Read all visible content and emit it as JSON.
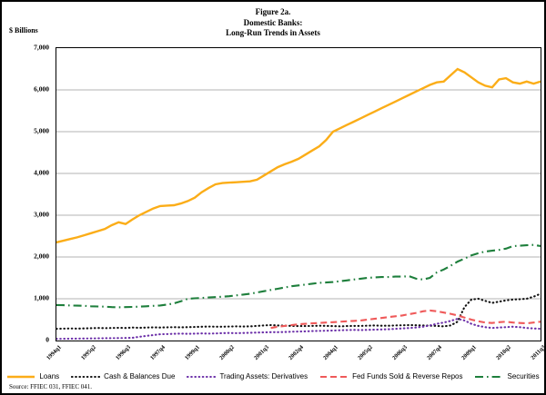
{
  "figure": {
    "title_lines": [
      "Figure 2a.",
      "Domestic Banks:",
      "Long-Run Trends in Assets"
    ],
    "y_axis_unit_label": "$ Billions",
    "source": "Source: FFIEC 031, FFIEC 041."
  },
  "chart_data": {
    "type": "line",
    "title": "Figure 2a. Domestic Banks: Long-Run Trends in Assets",
    "ylabel": "$ Billions",
    "ylim": [
      0,
      7000
    ],
    "grid": "horizontal-gray",
    "legend_position": "bottom",
    "n_points": 71,
    "x_start": "1994q1",
    "x_end": "2011q3",
    "x_frequency": "quarterly",
    "x_ticks": [
      {
        "pos": 0,
        "label": "1994q1"
      },
      {
        "pos": 5,
        "label": "1995q2"
      },
      {
        "pos": 10,
        "label": "1996q3"
      },
      {
        "pos": 15,
        "label": "1997q4"
      },
      {
        "pos": 20,
        "label": "1999q1"
      },
      {
        "pos": 25,
        "label": "2000q2"
      },
      {
        "pos": 30,
        "label": "2001q3"
      },
      {
        "pos": 35,
        "label": "2002q4"
      },
      {
        "pos": 40,
        "label": "2004q1"
      },
      {
        "pos": 45,
        "label": "2005q2"
      },
      {
        "pos": 50,
        "label": "2006q3"
      },
      {
        "pos": 55,
        "label": "2007q4"
      },
      {
        "pos": 60,
        "label": "2009q1"
      },
      {
        "pos": 65,
        "label": "2010q2"
      },
      {
        "pos": 70,
        "label": "2011q3"
      }
    ],
    "y_ticks": [
      {
        "v": 0,
        "label": "0"
      },
      {
        "v": 1000,
        "label": "1,000"
      },
      {
        "v": 2000,
        "label": "2,000"
      },
      {
        "v": 3000,
        "label": "3,000"
      },
      {
        "v": 4000,
        "label": "4,000"
      },
      {
        "v": 5000,
        "label": "5,000"
      },
      {
        "v": 6000,
        "label": "6,000"
      },
      {
        "v": 7000,
        "label": "7,000"
      }
    ],
    "gridline_color": "#b3b3b3",
    "series": [
      {
        "name": "Loans",
        "color": "#FBAD18",
        "style": "solid",
        "values": [
          2350,
          2390,
          2430,
          2470,
          2520,
          2570,
          2620,
          2670,
          2760,
          2830,
          2790,
          2900,
          3000,
          3080,
          3160,
          3220,
          3230,
          3240,
          3280,
          3340,
          3420,
          3550,
          3650,
          3740,
          3770,
          3780,
          3790,
          3800,
          3810,
          3850,
          3950,
          4050,
          4150,
          4220,
          4280,
          4350,
          4450,
          4550,
          4650,
          4800,
          5000,
          5080,
          5160,
          5240,
          5320,
          5400,
          5480,
          5560,
          5640,
          5720,
          5800,
          5880,
          5960,
          6040,
          6120,
          6180,
          6200,
          6350,
          6500,
          6420,
          6300,
          6180,
          6100,
          6060,
          6250,
          6280,
          6180,
          6150,
          6200,
          6150,
          6200
        ]
      },
      {
        "name": "Cash & Balances Due",
        "color": "#111111",
        "style": "dotted",
        "values": [
          280,
          285,
          290,
          285,
          290,
          295,
          300,
          295,
          300,
          305,
          300,
          310,
          305,
          310,
          315,
          310,
          315,
          320,
          315,
          320,
          325,
          330,
          335,
          330,
          330,
          335,
          340,
          335,
          340,
          350,
          360,
          370,
          360,
          355,
          350,
          345,
          345,
          350,
          355,
          350,
          345,
          340,
          345,
          350,
          350,
          355,
          360,
          355,
          355,
          360,
          365,
          370,
          365,
          360,
          355,
          350,
          340,
          360,
          450,
          800,
          980,
          1000,
          950,
          900,
          930,
          960,
          980,
          990,
          1000,
          1050,
          1120
        ]
      },
      {
        "name": "Trading Assets: Derivatives",
        "color": "#6B2FA8",
        "style": "dotted",
        "values": [
          40,
          42,
          44,
          46,
          48,
          50,
          52,
          54,
          56,
          58,
          60,
          65,
          90,
          110,
          130,
          150,
          155,
          160,
          165,
          160,
          165,
          170,
          165,
          170,
          175,
          180,
          175,
          180,
          185,
          190,
          195,
          200,
          200,
          205,
          210,
          215,
          220,
          225,
          230,
          235,
          240,
          245,
          250,
          255,
          250,
          255,
          260,
          265,
          270,
          280,
          290,
          300,
          310,
          330,
          360,
          400,
          430,
          470,
          520,
          480,
          400,
          350,
          320,
          300,
          310,
          320,
          330,
          320,
          300,
          290,
          280
        ]
      },
      {
        "name": "Fed Funds Sold & Reverse Repos",
        "color": "#EF5A5A",
        "style": "dashed",
        "values": [
          null,
          null,
          null,
          null,
          null,
          null,
          null,
          null,
          null,
          null,
          null,
          null,
          null,
          null,
          null,
          null,
          null,
          null,
          null,
          null,
          null,
          null,
          null,
          null,
          null,
          null,
          null,
          null,
          null,
          null,
          null,
          300,
          330,
          350,
          370,
          390,
          400,
          410,
          420,
          430,
          440,
          450,
          460,
          470,
          480,
          500,
          520,
          540,
          560,
          580,
          600,
          630,
          660,
          700,
          720,
          700,
          670,
          640,
          600,
          550,
          500,
          460,
          430,
          420,
          440,
          450,
          430,
          420,
          410,
          430,
          450
        ]
      },
      {
        "name": "Securities",
        "color": "#1E7F3C",
        "style": "dashdot",
        "values": [
          850,
          845,
          840,
          835,
          830,
          820,
          815,
          810,
          800,
          795,
          800,
          805,
          810,
          820,
          830,
          840,
          860,
          890,
          940,
          1000,
          1010,
          1020,
          1030,
          1040,
          1050,
          1060,
          1080,
          1100,
          1120,
          1150,
          1180,
          1210,
          1240,
          1270,
          1300,
          1320,
          1340,
          1360,
          1380,
          1390,
          1400,
          1420,
          1440,
          1460,
          1480,
          1500,
          1510,
          1520,
          1520,
          1530,
          1530,
          1540,
          1480,
          1460,
          1500,
          1630,
          1700,
          1790,
          1890,
          1960,
          2040,
          2090,
          2130,
          2150,
          2170,
          2200,
          2260,
          2270,
          2280,
          2290,
          2260
        ]
      }
    ]
  }
}
